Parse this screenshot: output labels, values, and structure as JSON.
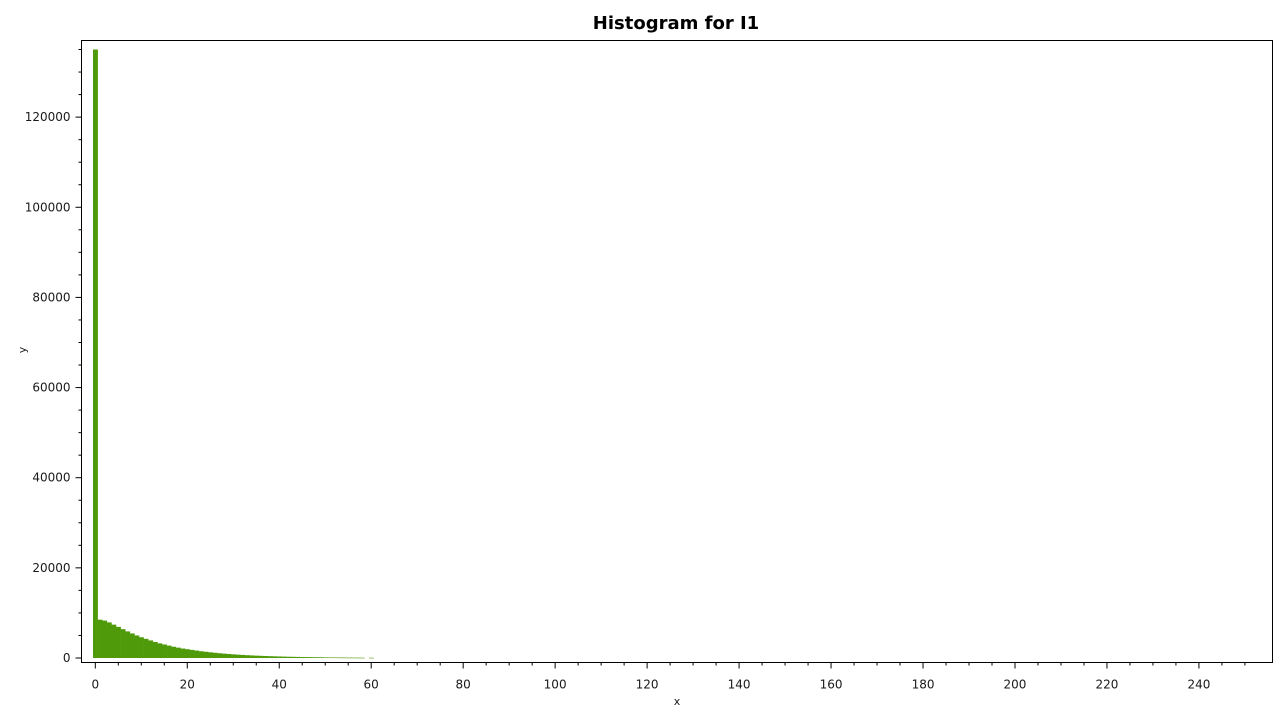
{
  "chart_data": {
    "type": "bar",
    "title": "Histogram for I1",
    "xlabel": "x",
    "ylabel": "y",
    "xlim": [
      -3,
      256
    ],
    "ylim": [
      -1000,
      137000
    ],
    "x_ticks": [
      0,
      20,
      40,
      60,
      80,
      100,
      120,
      140,
      160,
      180,
      200,
      220,
      240
    ],
    "y_ticks": [
      0,
      20000,
      40000,
      60000,
      80000,
      100000,
      120000
    ],
    "grid": false,
    "legend": "none",
    "bar_color": "#4f9a0a",
    "x": [
      0,
      1,
      2,
      3,
      4,
      5,
      6,
      7,
      8,
      9,
      10,
      11,
      12,
      13,
      14,
      15,
      16,
      17,
      18,
      19,
      20,
      21,
      22,
      23,
      24,
      25,
      26,
      27,
      28,
      29,
      30,
      31,
      32,
      33,
      34,
      35,
      36,
      37,
      38,
      39,
      40,
      41,
      42,
      43,
      44,
      45,
      46,
      47,
      48,
      49,
      50,
      51,
      52,
      53,
      54,
      55,
      56,
      57,
      58,
      59,
      60
    ],
    "values": [
      135000,
      8500,
      8300,
      7900,
      7400,
      6900,
      6400,
      5900,
      5450,
      5000,
      4600,
      4250,
      3900,
      3550,
      3250,
      3000,
      2750,
      2500,
      2300,
      2100,
      1950,
      1800,
      1650,
      1500,
      1380,
      1270,
      1160,
      1060,
      970,
      890,
      810,
      740,
      680,
      620,
      570,
      520,
      480,
      440,
      400,
      370,
      340,
      310,
      280,
      260,
      240,
      220,
      200,
      185,
      170,
      155,
      140,
      128,
      117,
      107,
      97,
      88,
      80,
      72,
      65,
      0,
      55
    ]
  }
}
